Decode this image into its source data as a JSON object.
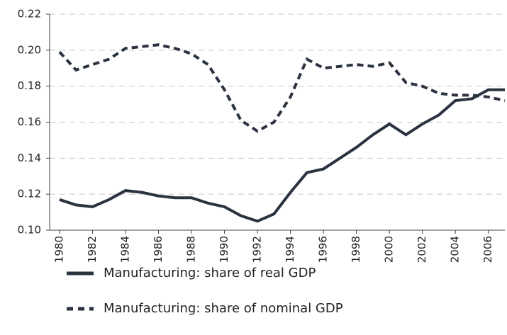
{
  "chart_data": {
    "type": "line",
    "x": [
      1980,
      1981,
      1982,
      1983,
      1984,
      1985,
      1986,
      1987,
      1988,
      1989,
      1990,
      1991,
      1992,
      1993,
      1994,
      1995,
      1996,
      1997,
      1998,
      1999,
      2000,
      2001,
      2002,
      2003,
      2004,
      2005,
      2006,
      2007
    ],
    "series": [
      {
        "name": "Manufacturing: share of real GDP",
        "color": "#2b3340",
        "dash": false,
        "values": [
          0.117,
          0.114,
          0.113,
          0.117,
          0.122,
          0.121,
          0.119,
          0.118,
          0.118,
          0.115,
          0.113,
          0.108,
          0.105,
          0.109,
          0.121,
          0.132,
          0.134,
          0.14,
          0.146,
          0.153,
          0.159,
          0.153,
          0.159,
          0.164,
          0.172,
          0.173,
          0.178,
          0.178
        ]
      },
      {
        "name": "Manufacturing: share of nominal GDP",
        "color": "#2b3340",
        "dash": true,
        "values": [
          0.199,
          0.189,
          0.192,
          0.195,
          0.201,
          0.202,
          0.203,
          0.201,
          0.198,
          0.192,
          0.178,
          0.161,
          0.155,
          0.16,
          0.174,
          0.195,
          0.19,
          0.191,
          0.192,
          0.191,
          0.193,
          0.182,
          0.18,
          0.176,
          0.175,
          0.175,
          0.174,
          0.172
        ]
      }
    ],
    "xlim": [
      1979.4,
      2007
    ],
    "xticks": [
      1980,
      1982,
      1984,
      1986,
      1988,
      1990,
      1992,
      1994,
      1996,
      1998,
      2000,
      2002,
      2004,
      2006
    ],
    "ylim": [
      0.1,
      0.22
    ],
    "yticks": [
      {
        "value": 0.1,
        "label": "0.10"
      },
      {
        "value": 0.12,
        "label": "0.12"
      },
      {
        "value": 0.14,
        "label": "0.14"
      },
      {
        "value": 0.16,
        "label": "0.16"
      },
      {
        "value": 0.18,
        "label": "0.18"
      },
      {
        "value": 0.2,
        "label": "0.20"
      },
      {
        "value": 0.22,
        "label": "0.22"
      }
    ],
    "grid": true
  }
}
